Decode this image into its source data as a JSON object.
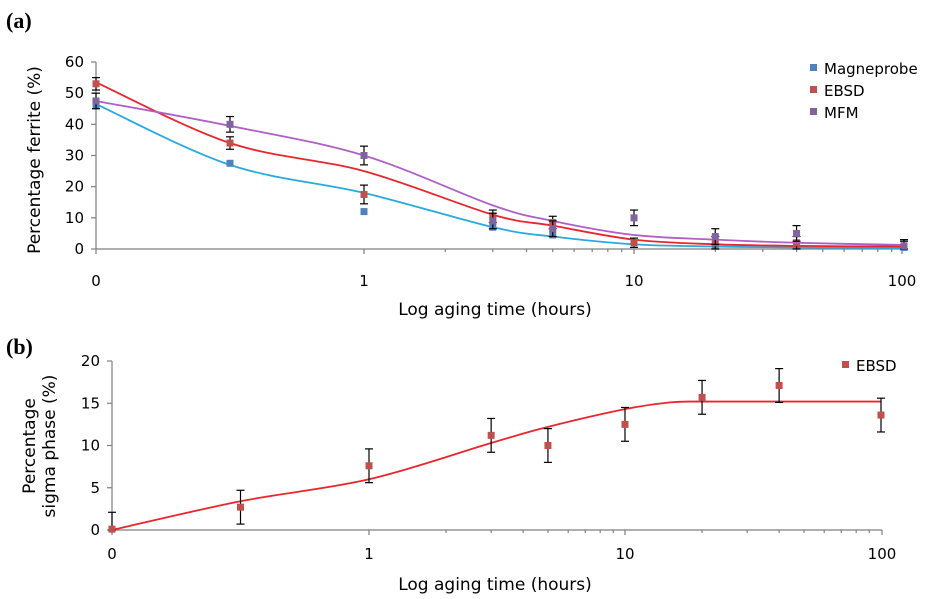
{
  "chart_data": [
    {
      "type": "scatter",
      "panel_label": "(a)",
      "xlabel": "Log aging time (hours)",
      "ylabel": "Percentage ferrite (%)",
      "x_scale": "log, with 0 shown at the left end",
      "x_ticks": [
        "0",
        "1",
        "10",
        "100"
      ],
      "y_ticks": [
        "0",
        "10",
        "20",
        "30",
        "40",
        "50",
        "60"
      ],
      "ylim": [
        0,
        60
      ],
      "grid": false,
      "legend_position": "top-right",
      "series": [
        {
          "name": "Magneprobe",
          "color": "#4f81bd",
          "fit_color": "#29a9e0",
          "x": [
            0,
            0.5,
            1,
            3,
            5,
            10,
            20,
            40,
            100
          ],
          "y": [
            46,
            27.5,
            12,
            7,
            4.5,
            2,
            1,
            1,
            0.5
          ],
          "err": [
            0,
            0,
            0,
            0,
            0,
            0,
            0,
            0,
            0
          ],
          "fit": {
            "x": [
              0,
              0.5,
              1,
              3,
              5,
              10,
              20,
              40,
              100
            ],
            "y": [
              46.5,
              27,
              18,
              7,
              4,
              1.5,
              0.8,
              0.5,
              0.3
            ]
          }
        },
        {
          "name": "EBSD",
          "color": "#c0504d",
          "fit_color": "#e8262d",
          "x": [
            0,
            0.5,
            1,
            3,
            5,
            10,
            20,
            40,
            100
          ],
          "y": [
            53,
            34,
            17.5,
            10.5,
            8.5,
            2,
            2,
            2,
            1
          ],
          "err": [
            2,
            2,
            3,
            2,
            2,
            1.5,
            2,
            2,
            1.5
          ],
          "fit": {
            "x": [
              0,
              0.5,
              1,
              3,
              5,
              10,
              20,
              40,
              100
            ],
            "y": [
              53.5,
              34,
              25,
              11,
              7.5,
              3,
              1.5,
              1,
              0.8
            ]
          }
        },
        {
          "name": "MFM",
          "color": "#8064a2",
          "fit_color": "#b05fc6",
          "x": [
            0,
            0.5,
            1,
            3,
            5,
            10,
            20,
            40,
            100
          ],
          "y": [
            47.5,
            40,
            30,
            9,
            6.5,
            10,
            4,
            5,
            1
          ],
          "err": [
            2.5,
            2.5,
            3,
            2.5,
            2.5,
            2.5,
            2.5,
            2.5,
            2
          ],
          "fit": {
            "x": [
              0,
              0.5,
              1,
              3,
              5,
              10,
              20,
              40,
              100
            ],
            "y": [
              47.5,
              39.5,
              30,
              14,
              9,
              4.5,
              3,
              2,
              1.3
            ]
          }
        }
      ]
    },
    {
      "type": "scatter",
      "panel_label": "(b)",
      "xlabel": "Log aging time (hours)",
      "ylabel": "Percentage sigma phase (%)",
      "ylabel_lines": [
        "Percentage",
        "sigma phase (%)"
      ],
      "x_scale": "log, with 0 shown at the left end",
      "x_ticks": [
        "0",
        "1",
        "10",
        "100"
      ],
      "y_ticks": [
        "0",
        "5",
        "10",
        "15",
        "20"
      ],
      "ylim": [
        0,
        20
      ],
      "grid": false,
      "legend_position": "top-right",
      "series": [
        {
          "name": "EBSD",
          "color": "#c0504d",
          "fit_color": "#e8262d",
          "x": [
            0,
            0.5,
            1,
            3,
            5,
            10,
            20,
            40,
            100
          ],
          "y": [
            0.1,
            2.7,
            7.6,
            11.2,
            10,
            12.5,
            15.7,
            17.1,
            13.6
          ],
          "err": [
            2,
            2,
            2,
            2,
            2,
            2,
            2,
            2,
            2
          ],
          "fit": {
            "x": [
              0,
              0.5,
              1,
              3,
              5,
              10,
              15,
              20,
              40,
              100
            ],
            "y": [
              0,
              3.4,
              6,
              10.3,
              12.2,
              14.3,
              15.1,
              15.2,
              15.2,
              15.2
            ]
          }
        }
      ]
    }
  ]
}
